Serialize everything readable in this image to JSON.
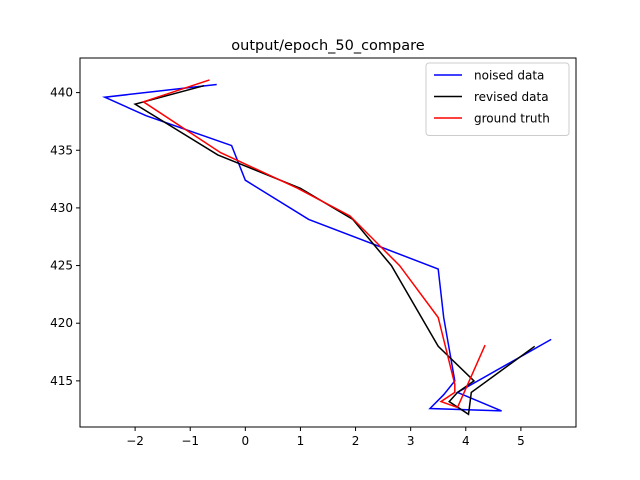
{
  "chart_data": {
    "type": "line",
    "title": "output/epoch_50_compare",
    "xlabel": "",
    "ylabel": "",
    "xlim": [
      -3.0,
      6.0
    ],
    "ylim": [
      411.0,
      443.0
    ],
    "x_ticks": [
      -2,
      -1,
      0,
      1,
      2,
      3,
      4,
      5
    ],
    "y_ticks": [
      415,
      420,
      425,
      430,
      435,
      440
    ],
    "grid": false,
    "legend_position": "top-right",
    "series": [
      {
        "name": "noised data",
        "color": "#0000ff",
        "points": [
          [
            5.55,
            418.6
          ],
          [
            3.85,
            414.0
          ],
          [
            4.65,
            412.4
          ],
          [
            3.35,
            412.6
          ],
          [
            3.6,
            413.8
          ],
          [
            3.8,
            415.0
          ],
          [
            3.6,
            420.5
          ],
          [
            3.5,
            424.7
          ],
          [
            1.15,
            429.0
          ],
          [
            0.0,
            432.4
          ],
          [
            -0.25,
            435.4
          ],
          [
            -1.8,
            438.0
          ],
          [
            -2.55,
            439.6
          ],
          [
            -0.52,
            440.7
          ]
        ]
      },
      {
        "name": "revised data",
        "color": "#000000",
        "points": [
          [
            5.25,
            418.0
          ],
          [
            4.1,
            414.0
          ],
          [
            4.05,
            412.1
          ],
          [
            3.7,
            413.2
          ],
          [
            3.85,
            414.0
          ],
          [
            4.15,
            415.0
          ],
          [
            3.5,
            418.0
          ],
          [
            2.65,
            425.0
          ],
          [
            1.95,
            429.0
          ],
          [
            1.0,
            431.7
          ],
          [
            -0.5,
            434.6
          ],
          [
            -2.0,
            439.0
          ],
          [
            -0.75,
            440.6
          ]
        ]
      },
      {
        "name": "ground truth",
        "color": "#ff0000",
        "points": [
          [
            4.35,
            418.1
          ],
          [
            3.85,
            412.7
          ],
          [
            3.55,
            413.2
          ],
          [
            3.8,
            414.0
          ],
          [
            3.8,
            414.7
          ],
          [
            3.5,
            420.5
          ],
          [
            2.8,
            425.0
          ],
          [
            1.9,
            429.3
          ],
          [
            0.95,
            431.7
          ],
          [
            -0.45,
            434.8
          ],
          [
            -1.85,
            439.2
          ],
          [
            -0.65,
            441.1
          ]
        ]
      }
    ]
  }
}
